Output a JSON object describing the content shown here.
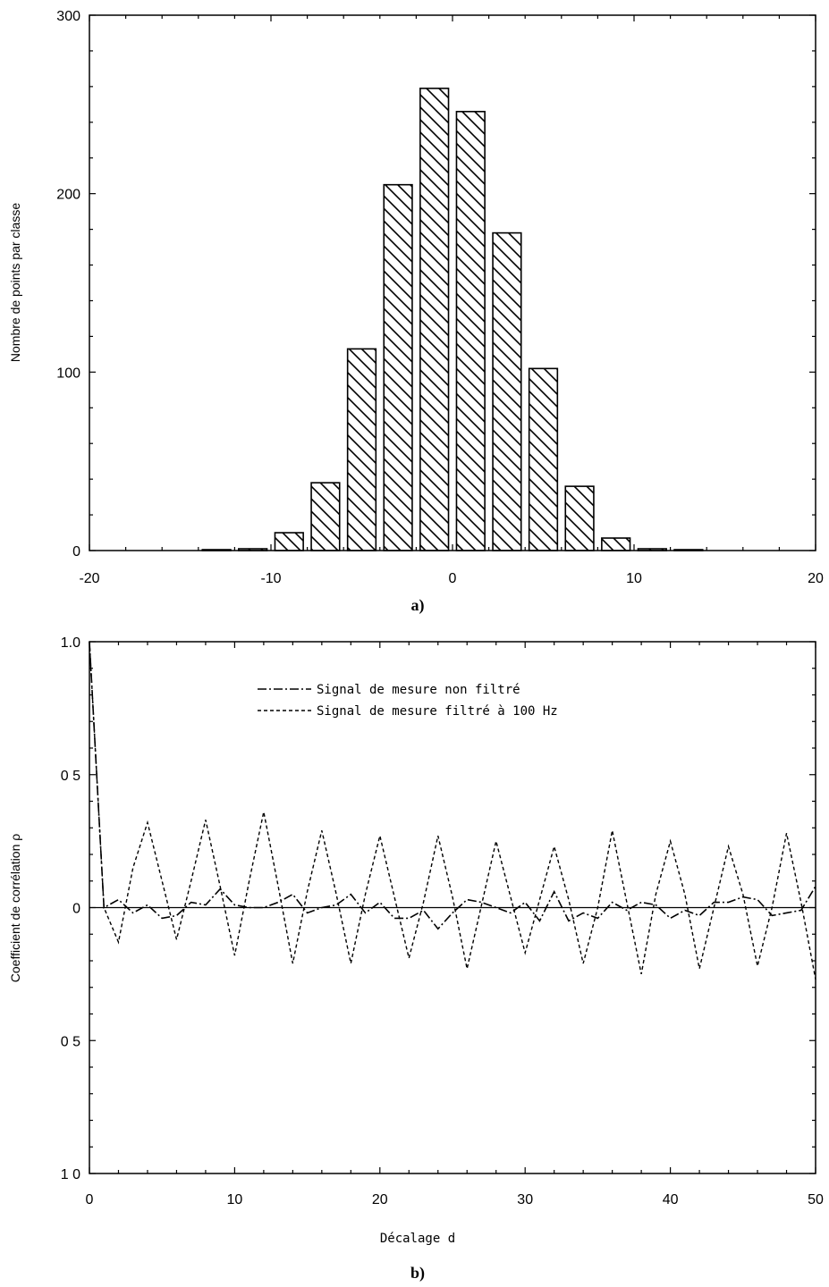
{
  "chart_data": [
    {
      "type": "bar",
      "caption": "a)",
      "title": "",
      "xlabel": "",
      "ylabel": "Nombre de points par classe",
      "xlim": [
        -20,
        20
      ],
      "ylim": [
        0,
        300
      ],
      "xticks": [
        -20,
        -10,
        0,
        10,
        20
      ],
      "xtick_labels": [
        "-20",
        "-10",
        "0",
        "10",
        "20"
      ],
      "yticks": [
        0,
        100,
        200,
        300
      ],
      "ytick_labels": [
        "0",
        "100",
        "200",
        "300"
      ],
      "bin_width": 2,
      "bins": [
        {
          "center": -13,
          "value": 0.5
        },
        {
          "center": -11,
          "value": 1
        },
        {
          "center": -9,
          "value": 10
        },
        {
          "center": -7,
          "value": 38
        },
        {
          "center": -5,
          "value": 113
        },
        {
          "center": -3,
          "value": 205
        },
        {
          "center": -1,
          "value": 259
        },
        {
          "center": 1,
          "value": 246
        },
        {
          "center": 3,
          "value": 178
        },
        {
          "center": 5,
          "value": 102
        },
        {
          "center": 7,
          "value": 36
        },
        {
          "center": 9,
          "value": 7
        },
        {
          "center": 11,
          "value": 1
        },
        {
          "center": 13,
          "value": 0.5
        }
      ],
      "fill": "hatched",
      "grid": false
    },
    {
      "type": "line",
      "caption": "b)",
      "title": "",
      "xlabel": "Décalage d",
      "ylabel": "Coefficient de corrélation ρ",
      "xlim": [
        0,
        50
      ],
      "ylim": [
        -1.0,
        1.0
      ],
      "xticks": [
        0,
        10,
        20,
        30,
        40,
        50
      ],
      "xtick_labels": [
        "0",
        "10",
        "20",
        "30",
        "40",
        "50"
      ],
      "yticks": [
        1.0,
        0.5,
        0,
        -0.5,
        -1.0
      ],
      "ytick_labels": [
        "1.0",
        "0 5",
        "0",
        "0 5",
        "1 0"
      ],
      "legend_position": "top-center",
      "grid": false,
      "x": [
        0,
        1,
        2,
        3,
        4,
        5,
        6,
        7,
        8,
        9,
        10,
        11,
        12,
        13,
        14,
        15,
        16,
        17,
        18,
        19,
        20,
        21,
        22,
        23,
        24,
        25,
        26,
        27,
        28,
        29,
        30,
        31,
        32,
        33,
        34,
        35,
        36,
        37,
        38,
        39,
        40,
        41,
        42,
        43,
        44,
        45,
        46,
        47,
        48,
        49,
        50
      ],
      "series": [
        {
          "name": "Signal de mesure non filtré",
          "style": "dash-dot",
          "values": [
            1.0,
            0.0,
            0.03,
            -0.02,
            0.01,
            -0.04,
            -0.03,
            0.02,
            0.01,
            0.07,
            0.01,
            0.0,
            0.0,
            0.02,
            0.05,
            -0.02,
            0.0,
            0.01,
            0.05,
            -0.02,
            0.02,
            -0.04,
            -0.04,
            -0.01,
            -0.08,
            -0.02,
            0.03,
            0.02,
            0.0,
            -0.02,
            0.02,
            -0.05,
            0.06,
            -0.05,
            -0.02,
            -0.04,
            0.02,
            -0.01,
            0.02,
            0.01,
            -0.04,
            -0.01,
            -0.03,
            0.02,
            0.02,
            0.04,
            0.03,
            -0.03,
            -0.02,
            -0.01,
            0.08
          ]
        },
        {
          "name": "Signal de mesure filtré à 100 Hz",
          "style": "dashed",
          "values": [
            1.0,
            0.0,
            -0.13,
            0.15,
            0.32,
            0.1,
            -0.12,
            0.1,
            0.33,
            0.08,
            -0.18,
            0.1,
            0.36,
            0.08,
            -0.21,
            0.06,
            0.29,
            0.05,
            -0.21,
            0.05,
            0.27,
            0.04,
            -0.19,
            0.02,
            0.27,
            0.04,
            -0.23,
            0.01,
            0.25,
            0.04,
            -0.17,
            0.03,
            0.23,
            0.03,
            -0.21,
            0.0,
            0.29,
            0.02,
            -0.25,
            0.05,
            0.25,
            0.05,
            -0.23,
            0.0,
            0.23,
            0.05,
            -0.22,
            0.0,
            0.28,
            0.02,
            -0.27
          ]
        }
      ]
    }
  ]
}
